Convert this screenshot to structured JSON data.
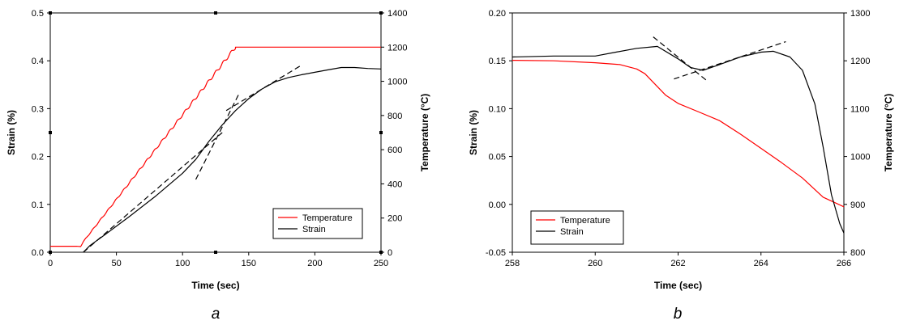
{
  "chart_data": [
    {
      "type": "line",
      "panel_label": "a",
      "xlabel": "Time (sec)",
      "ylabel_left": "Strain (%)",
      "ylabel_right": "Temperature (°C)",
      "xlim": [
        0,
        250
      ],
      "ylim_left": [
        0,
        0.5
      ],
      "ylim_right": [
        0,
        1400
      ],
      "x_ticks": [
        "0",
        "50",
        "100",
        "150",
        "200",
        "250"
      ],
      "y_left_ticks": [
        "0.0",
        "0.1",
        "0.2",
        "0.3",
        "0.4",
        "0.5"
      ],
      "y_right_ticks": [
        "0",
        "200",
        "400",
        "600",
        "800",
        "1000",
        "1200",
        "1400"
      ],
      "legend_position": "lower-right",
      "legend": [
        "Temperature",
        "Strain"
      ],
      "series": [
        {
          "name": "Temperature",
          "axis": "right",
          "color": "#ff0000",
          "oscillation_amplitude": 6,
          "oscillation_period": 5.8,
          "x": [
            0,
            20,
            23,
            25,
            140,
            250
          ],
          "y": [
            35,
            35,
            33,
            62,
            1200,
            1200
          ]
        },
        {
          "name": "Strain",
          "axis": "left",
          "color": "#000000",
          "x": [
            25,
            30,
            40,
            60,
            80,
            100,
            110,
            120,
            130,
            140,
            150,
            160,
            170,
            180,
            190,
            200,
            210,
            220,
            230,
            240,
            250
          ],
          "y": [
            0.0,
            0.014,
            0.034,
            0.075,
            0.118,
            0.165,
            0.194,
            0.232,
            0.266,
            0.296,
            0.321,
            0.341,
            0.356,
            0.365,
            0.371,
            0.376,
            0.381,
            0.386,
            0.386,
            0.384,
            0.383
          ]
        }
      ],
      "tangent_lines": [
        {
          "x": [
            25,
            130
          ],
          "y": [
            0.0,
            0.25
          ]
        },
        {
          "x": [
            110,
            143
          ],
          "y": [
            0.152,
            0.333
          ]
        },
        {
          "x": [
            133,
            190
          ],
          "y": [
            0.296,
            0.391
          ]
        }
      ]
    },
    {
      "type": "line",
      "panel_label": "b",
      "xlabel": "Time (sec)",
      "ylabel_left": "Strain (%)",
      "ylabel_right": "Temperature (°C)",
      "xlim": [
        258,
        266
      ],
      "ylim_left": [
        -0.05,
        0.2
      ],
      "ylim_right": [
        800,
        1300
      ],
      "x_ticks": [
        "258",
        "260",
        "262",
        "264",
        "266"
      ],
      "y_left_ticks": [
        "-0.05",
        "0.00",
        "0.05",
        "0.10",
        "0.15",
        "0.20"
      ],
      "y_right_ticks": [
        "800",
        "900",
        "1000",
        "1100",
        "1200",
        "1300"
      ],
      "legend_position": "lower-left",
      "legend": [
        "Temperature",
        "Strain"
      ],
      "series": [
        {
          "name": "Temperature",
          "axis": "right",
          "color": "#ff0000",
          "x": [
            258,
            259,
            260,
            260.6,
            261,
            261.2,
            261.4,
            261.7,
            262,
            262.5,
            263,
            263.5,
            264,
            264.5,
            265,
            265.5,
            266
          ],
          "y": [
            1201,
            1200,
            1196,
            1192,
            1183,
            1173,
            1155,
            1128,
            1111,
            1093,
            1075,
            1047,
            1017,
            987,
            955,
            915,
            895
          ]
        },
        {
          "name": "Strain",
          "axis": "left",
          "color": "#000000",
          "x": [
            258,
            259,
            260,
            260.5,
            261,
            261.5,
            262,
            262.3,
            262.6,
            263,
            263.5,
            264,
            264.3,
            264.7,
            265,
            265.3,
            265.5,
            265.7,
            265.9,
            266
          ],
          "y": [
            0.154,
            0.155,
            0.155,
            0.159,
            0.163,
            0.165,
            0.152,
            0.143,
            0.14,
            0.146,
            0.154,
            0.159,
            0.16,
            0.154,
            0.14,
            0.105,
            0.06,
            0.01,
            -0.02,
            -0.03
          ]
        }
      ],
      "tangent_lines": [
        {
          "x": [
            261.4,
            262.7
          ],
          "y": [
            0.175,
            0.129
          ]
        },
        {
          "x": [
            261.9,
            264.6
          ],
          "y": [
            0.131,
            0.17
          ]
        }
      ]
    }
  ]
}
